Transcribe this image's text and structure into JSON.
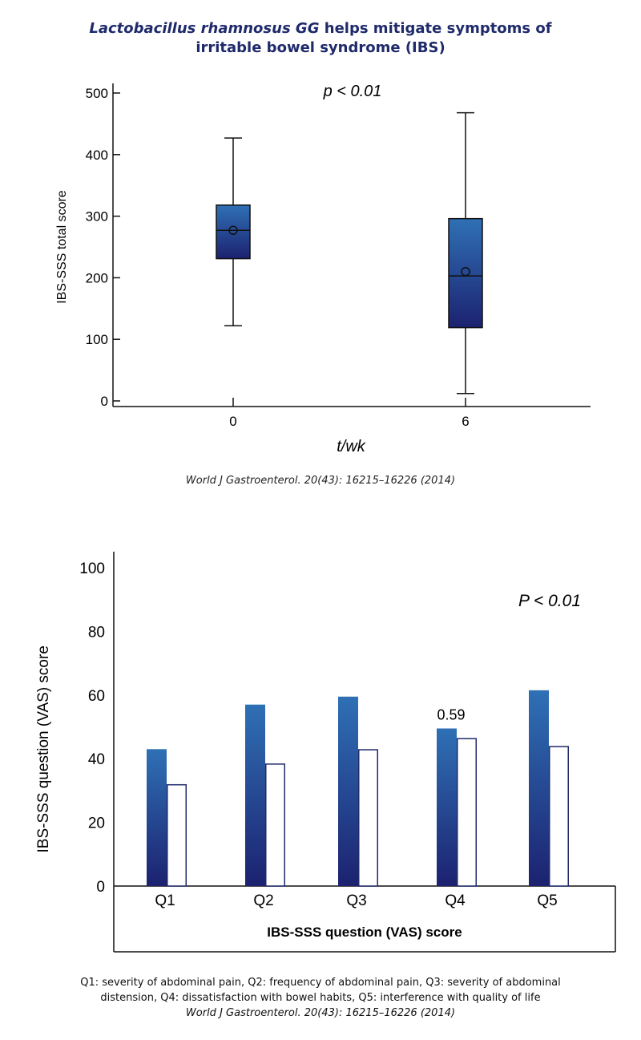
{
  "header": {
    "title_italic": "Lactobacillus rhamnosus GG",
    "title_rest": " helps mitigate symptoms of",
    "title_line2": "irritable bowel syndrome (IBS)"
  },
  "chart1_citation": "World J Gastroenterol. 20(43): 16215–16226 (2014)",
  "chart2_citation": "World J Gastroenterol. 20(43): 16215–16226 (2014)",
  "footnote": {
    "line1": "Q1: severity of abdominal pain, Q2: frequency of abdominal pain, Q3: severity of abdominal",
    "line2": "distension, Q4: dissatisfaction with bowel habits, Q5: interference with quality of life"
  },
  "colors": {
    "dark_blue": "#1f2a6b",
    "bar_top": "#2f70b5",
    "bar_bottom": "#1c2270",
    "axis": "#111111"
  },
  "chart_data": [
    {
      "type": "box",
      "xlabel": "t/wk",
      "ylabel": "IBS-SSS total score",
      "annotation": "p < 0.01",
      "ylim": [
        0,
        500
      ],
      "yticks": [
        0,
        100,
        200,
        300,
        400,
        500
      ],
      "categories": [
        "0",
        "6"
      ],
      "boxes": [
        {
          "x": "0",
          "min": 122,
          "q1": 231,
          "median": 277,
          "q3": 318,
          "max": 427,
          "mean": 277
        },
        {
          "x": "6",
          "min": 12,
          "q1": 119,
          "median": 203,
          "q3": 296,
          "max": 468,
          "mean": 210
        }
      ]
    },
    {
      "type": "bar",
      "xlabel": "IBS-SSS question (VAS) score",
      "ylabel": "IBS-SSS question (VAS) score",
      "annotation": "P < 0.01",
      "ylim": [
        0,
        100
      ],
      "yticks": [
        0,
        20,
        40,
        60,
        80,
        100
      ],
      "categories": [
        "Q1",
        "Q2",
        "Q3",
        "Q4",
        "Q5"
      ],
      "series": [
        {
          "values": [
            43,
            57,
            59.5,
            49.5,
            61.5
          ]
        },
        {
          "values": [
            32,
            38.5,
            43,
            46.5,
            44
          ]
        }
      ],
      "data_labels": [
        {
          "category": "Q4",
          "text": "0.59"
        }
      ]
    }
  ]
}
